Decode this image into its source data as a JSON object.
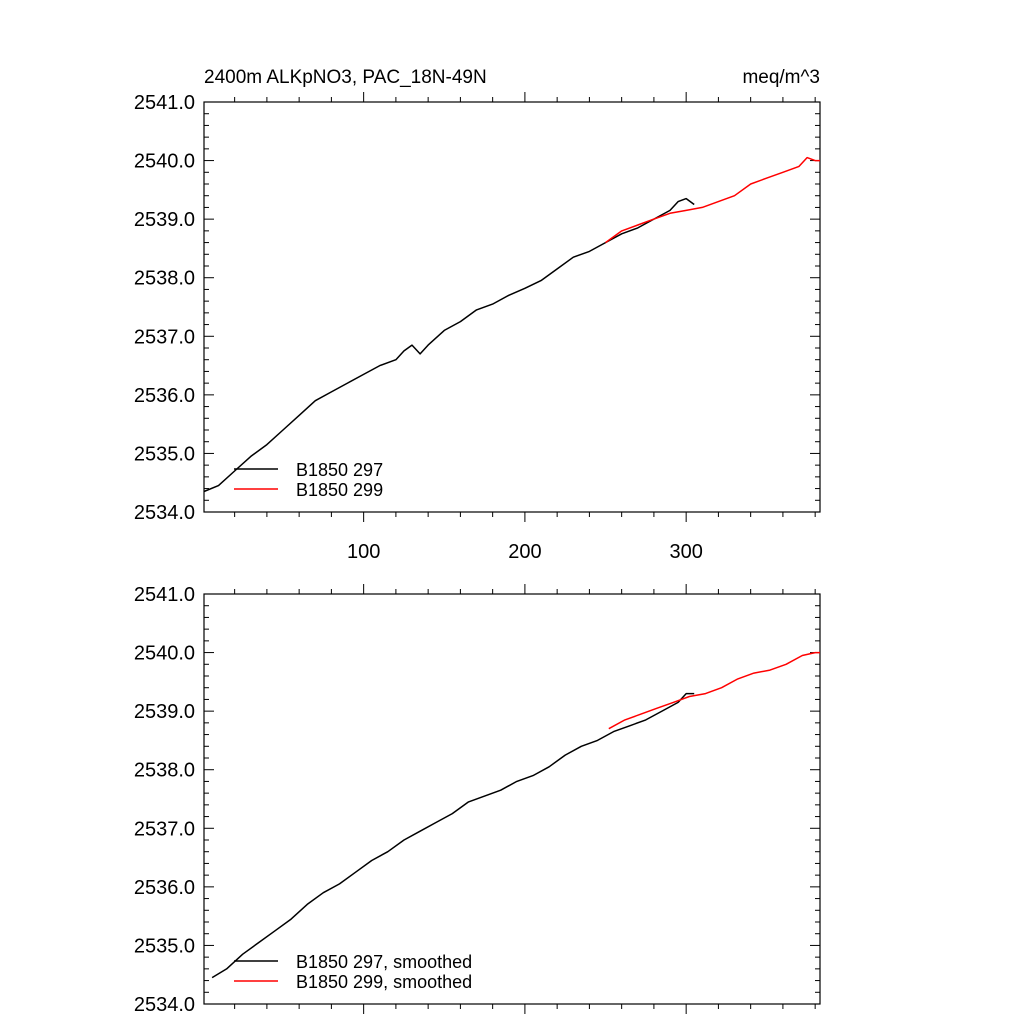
{
  "chart_data": [
    {
      "type": "line",
      "title": "2400m ALKpNO3, PAC_18N-49N",
      "units": "meq/m^3",
      "xlim": [
        1,
        383
      ],
      "ylim": [
        2534.0,
        2541.0
      ],
      "yticks": [
        "2534.0",
        "2535.0",
        "2536.0",
        "2537.0",
        "2538.0",
        "2539.0",
        "2540.0",
        "2541.0"
      ],
      "xticks": [
        "100",
        "200",
        "300"
      ],
      "legend_placement": "bottom-left",
      "series": [
        {
          "name": "B1850 297",
          "color": "#000000",
          "points": [
            [
              1,
              2534.35
            ],
            [
              10,
              2534.45
            ],
            [
              20,
              2534.7
            ],
            [
              30,
              2534.95
            ],
            [
              40,
              2535.15
            ],
            [
              50,
              2535.4
            ],
            [
              60,
              2535.65
            ],
            [
              70,
              2535.9
            ],
            [
              80,
              2536.05
            ],
            [
              90,
              2536.2
            ],
            [
              100,
              2536.35
            ],
            [
              110,
              2536.5
            ],
            [
              120,
              2536.6
            ],
            [
              125,
              2536.75
            ],
            [
              130,
              2536.85
            ],
            [
              135,
              2536.7
            ],
            [
              140,
              2536.85
            ],
            [
              150,
              2537.1
            ],
            [
              160,
              2537.25
            ],
            [
              170,
              2537.45
            ],
            [
              180,
              2537.55
            ],
            [
              190,
              2537.7
            ],
            [
              200,
              2537.82
            ],
            [
              210,
              2537.95
            ],
            [
              220,
              2538.15
            ],
            [
              230,
              2538.35
            ],
            [
              240,
              2538.45
            ],
            [
              250,
              2538.6
            ],
            [
              260,
              2538.75
            ],
            [
              270,
              2538.85
            ],
            [
              280,
              2539.0
            ],
            [
              290,
              2539.15
            ],
            [
              295,
              2539.3
            ],
            [
              300,
              2539.35
            ],
            [
              305,
              2539.25
            ]
          ]
        },
        {
          "name": "B1850 299",
          "color": "#ff0000",
          "points": [
            [
              250,
              2538.6
            ],
            [
              260,
              2538.8
            ],
            [
              270,
              2538.9
            ],
            [
              280,
              2539.0
            ],
            [
              290,
              2539.1
            ],
            [
              300,
              2539.15
            ],
            [
              310,
              2539.2
            ],
            [
              320,
              2539.3
            ],
            [
              330,
              2539.4
            ],
            [
              340,
              2539.6
            ],
            [
              350,
              2539.7
            ],
            [
              360,
              2539.8
            ],
            [
              370,
              2539.9
            ],
            [
              375,
              2540.05
            ],
            [
              380,
              2540.0
            ],
            [
              383,
              2540.0
            ]
          ]
        }
      ]
    },
    {
      "type": "line",
      "xlim": [
        1,
        383
      ],
      "ylim": [
        2534.0,
        2541.0
      ],
      "yticks": [
        "2534.0",
        "2535.0",
        "2536.0",
        "2537.0",
        "2538.0",
        "2539.0",
        "2540.0",
        "2541.0"
      ],
      "legend_placement": "bottom-left",
      "series": [
        {
          "name": "B1850 297, smoothed",
          "color": "#000000",
          "points": [
            [
              6,
              2534.45
            ],
            [
              15,
              2534.6
            ],
            [
              25,
              2534.85
            ],
            [
              35,
              2535.05
            ],
            [
              45,
              2535.25
            ],
            [
              55,
              2535.45
            ],
            [
              65,
              2535.7
            ],
            [
              75,
              2535.9
            ],
            [
              85,
              2536.05
            ],
            [
              95,
              2536.25
            ],
            [
              105,
              2536.45
            ],
            [
              115,
              2536.6
            ],
            [
              125,
              2536.8
            ],
            [
              135,
              2536.95
            ],
            [
              145,
              2537.1
            ],
            [
              155,
              2537.25
            ],
            [
              165,
              2537.45
            ],
            [
              175,
              2537.55
            ],
            [
              185,
              2537.65
            ],
            [
              195,
              2537.8
            ],
            [
              205,
              2537.9
            ],
            [
              215,
              2538.05
            ],
            [
              225,
              2538.25
            ],
            [
              235,
              2538.4
            ],
            [
              245,
              2538.5
            ],
            [
              255,
              2538.65
            ],
            [
              265,
              2538.75
            ],
            [
              275,
              2538.85
            ],
            [
              285,
              2539.0
            ],
            [
              295,
              2539.15
            ],
            [
              300,
              2539.3
            ],
            [
              305,
              2539.3
            ]
          ]
        },
        {
          "name": "B1850 299, smoothed",
          "color": "#ff0000",
          "points": [
            [
              252,
              2538.7
            ],
            [
              262,
              2538.85
            ],
            [
              272,
              2538.95
            ],
            [
              282,
              2539.05
            ],
            [
              292,
              2539.15
            ],
            [
              302,
              2539.25
            ],
            [
              312,
              2539.3
            ],
            [
              322,
              2539.4
            ],
            [
              332,
              2539.55
            ],
            [
              342,
              2539.65
            ],
            [
              352,
              2539.7
            ],
            [
              362,
              2539.8
            ],
            [
              372,
              2539.95
            ],
            [
              380,
              2540.0
            ],
            [
              383,
              2540.0
            ]
          ]
        }
      ]
    }
  ]
}
